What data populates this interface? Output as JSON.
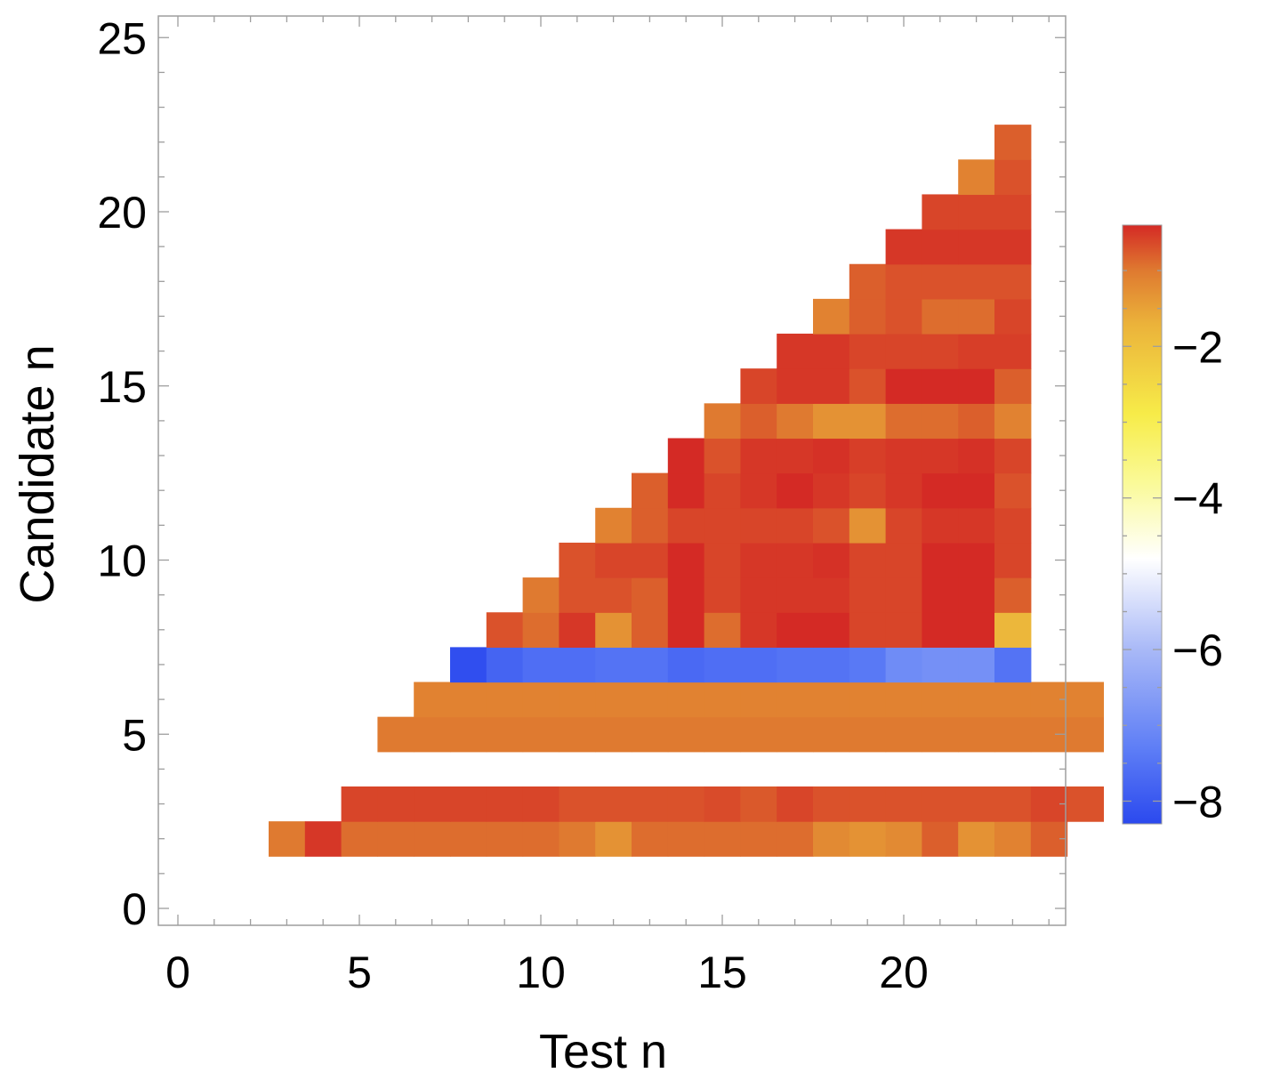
{
  "chart_data": {
    "type": "heatmap",
    "title": "",
    "xlabel": "Test n",
    "ylabel": "Candidate n",
    "xlim": [
      -0.5,
      24.5
    ],
    "ylim": [
      -0.5,
      25.5
    ],
    "x_ticks": [
      0,
      5,
      10,
      15,
      20
    ],
    "y_ticks": [
      0,
      5,
      10,
      15,
      20,
      25
    ],
    "colorbar": {
      "range": [
        -8.3,
        -0.4
      ],
      "ticks": [
        -8,
        -6,
        -4,
        -2
      ],
      "tick_labels": [
        "−8",
        "−6",
        "−4",
        "−2"
      ],
      "colormap": [
        {
          "v": -8.3,
          "color": "#2b49ee"
        },
        {
          "v": -7.3,
          "color": "#5e7ef6"
        },
        {
          "v": -6.0,
          "color": "#a9b9f7"
        },
        {
          "v": -4.8,
          "color": "#ffffff"
        },
        {
          "v": -3.8,
          "color": "#fafa98"
        },
        {
          "v": -2.9,
          "color": "#f7ec49"
        },
        {
          "v": -1.7,
          "color": "#ebb23a"
        },
        {
          "v": -1.0,
          "color": "#df7a30"
        },
        {
          "v": -0.4,
          "color": "#d42a25"
        }
      ]
    },
    "rows": [
      {
        "y": 2,
        "x_start": 3,
        "values": [
          -1.0,
          -0.5,
          -0.9,
          -0.9,
          -0.9,
          -0.9,
          -0.9,
          -0.9,
          -1.0,
          -1.3,
          -0.9,
          -0.9,
          -0.9,
          -0.9,
          -0.9,
          -1.2,
          -1.3,
          -1.2,
          -0.8,
          -1.3,
          -1.1,
          -0.8
        ]
      },
      {
        "y": 3,
        "x_start": 5,
        "values": [
          -0.6,
          -0.6,
          -0.6,
          -0.6,
          -0.6,
          -0.6,
          -0.7,
          -0.7,
          -0.7,
          -0.7,
          -0.65,
          -0.75,
          -0.6,
          -0.7,
          -0.7,
          -0.7,
          -0.7,
          -0.7,
          -0.7,
          -0.6,
          -0.7
        ]
      },
      {
        "y": 5,
        "x_start": 6,
        "values": [
          -1.0,
          -1.0,
          -1.0,
          -1.0,
          -1.0,
          -1.0,
          -1.0,
          -1.0,
          -1.0,
          -1.0,
          -1.0,
          -1.0,
          -1.0,
          -1.0,
          -1.0,
          -1.0,
          -1.0,
          -1.0,
          -1.0,
          -1.0
        ]
      },
      {
        "y": 6,
        "x_start": 7,
        "values": [
          -1.1,
          -1.1,
          -1.1,
          -1.1,
          -1.1,
          -1.1,
          -1.1,
          -1.1,
          -1.1,
          -1.1,
          -1.1,
          -1.1,
          -1.1,
          -1.1,
          -1.1,
          -1.1,
          -1.1,
          -1.1,
          -1.1
        ]
      },
      {
        "y": 7,
        "x_start": 8,
        "values": [
          -8.2,
          -7.8,
          -7.6,
          -7.6,
          -7.5,
          -7.5,
          -7.7,
          -7.6,
          -7.6,
          -7.5,
          -7.5,
          -7.4,
          -7.0,
          -6.9,
          -6.9,
          -7.5
        ]
      },
      {
        "y": 8,
        "x_start": 9,
        "values": [
          -0.7,
          -0.9,
          -0.5,
          -1.3,
          -0.8,
          -0.3,
          -0.9,
          -0.5,
          -0.4,
          -0.4,
          -0.6,
          -0.6,
          -0.4,
          -0.4,
          -1.8
        ]
      },
      {
        "y": 9,
        "x_start": 10,
        "values": [
          -1.0,
          -0.7,
          -0.7,
          -0.8,
          -0.4,
          -0.6,
          -0.5,
          -0.5,
          -0.5,
          -0.6,
          -0.6,
          -0.4,
          -0.4,
          -0.8
        ]
      },
      {
        "y": 10,
        "x_start": 11,
        "values": [
          -0.7,
          -0.6,
          -0.6,
          -0.4,
          -0.6,
          -0.5,
          -0.5,
          -0.45,
          -0.6,
          -0.6,
          -0.4,
          -0.4,
          -0.6
        ]
      },
      {
        "y": 11,
        "x_start": 12,
        "values": [
          -1.1,
          -0.8,
          -0.6,
          -0.6,
          -0.6,
          -0.6,
          -0.7,
          -1.3,
          -0.6,
          -0.5,
          -0.5,
          -0.6
        ]
      },
      {
        "y": 12,
        "x_start": 13,
        "values": [
          -0.8,
          -0.3,
          -0.6,
          -0.5,
          -0.4,
          -0.5,
          -0.6,
          -0.5,
          -0.3,
          -0.3,
          -0.7
        ]
      },
      {
        "y": 13,
        "x_start": 14,
        "values": [
          -0.35,
          -0.7,
          -0.5,
          -0.5,
          -0.45,
          -0.55,
          -0.5,
          -0.5,
          -0.45,
          -0.6
        ]
      },
      {
        "y": 14,
        "x_start": 15,
        "values": [
          -1.0,
          -0.8,
          -1.0,
          -1.3,
          -1.3,
          -0.9,
          -0.9,
          -0.8,
          -1.1
        ]
      },
      {
        "y": 15,
        "x_start": 16,
        "values": [
          -0.6,
          -0.5,
          -0.5,
          -0.7,
          -0.4,
          -0.35,
          -0.35,
          -0.8
        ]
      },
      {
        "y": 16,
        "x_start": 17,
        "values": [
          -0.5,
          -0.5,
          -0.6,
          -0.6,
          -0.6,
          -0.55,
          -0.55
        ]
      },
      {
        "y": 17,
        "x_start": 18,
        "values": [
          -1.1,
          -0.8,
          -0.7,
          -0.9,
          -0.9,
          -0.6
        ]
      },
      {
        "y": 18,
        "x_start": 19,
        "values": [
          -0.8,
          -0.7,
          -0.7,
          -0.7,
          -0.7
        ]
      },
      {
        "y": 19,
        "x_start": 20,
        "values": [
          -0.5,
          -0.5,
          -0.5,
          -0.5
        ]
      },
      {
        "y": 20,
        "x_start": 21,
        "values": [
          -0.6,
          -0.6,
          -0.6
        ]
      },
      {
        "y": 21,
        "x_start": 22,
        "values": [
          -1.1,
          -0.7
        ]
      },
      {
        "y": 22,
        "x_start": 23,
        "values": [
          -0.8
        ]
      }
    ]
  }
}
